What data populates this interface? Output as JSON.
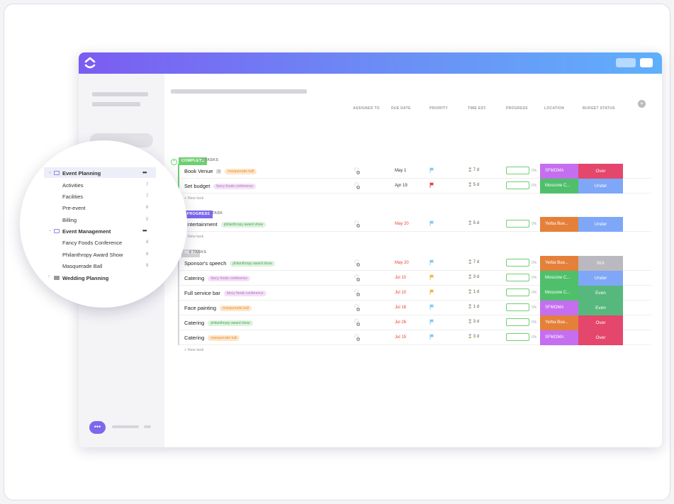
{
  "sidebar_zoom": {
    "items": [
      {
        "label": "Event Planning",
        "type": "folder",
        "more": "•••"
      },
      {
        "label": "Activities",
        "count": "7"
      },
      {
        "label": "Facilities",
        "count": "7"
      },
      {
        "label": "Pre-event",
        "count": "6"
      },
      {
        "label": "Billing",
        "count": "5"
      },
      {
        "label": "Event Management",
        "type": "folder",
        "more": "•••"
      },
      {
        "label": "Fancy Foods Conference",
        "count": "8"
      },
      {
        "label": "Philanthropy Award Show",
        "count": "8"
      },
      {
        "label": "Masquerade Ball",
        "count": "8"
      },
      {
        "label": "Wedding Planning",
        "type": "folder"
      }
    ]
  },
  "columns": {
    "assigned": "ASSIGNED TO",
    "due": "DUE DATE",
    "priority": "PRIORITY",
    "time": "TIME EST.",
    "progress": "PROGRESS",
    "location": "LOCATION",
    "budget": "BUDGET STATUS"
  },
  "groups": [
    {
      "status": "COMPLETE",
      "count": "2 TASKS",
      "color": "#6fcf72",
      "new_task": "+ New task",
      "tasks": [
        {
          "name": "Book Venue",
          "subcount": "3",
          "tag": "masquerade ball",
          "due": "May 1",
          "due_red": false,
          "flag": "#7fc9f0",
          "time": "7 d",
          "pct": "0%",
          "location": "SFMOMA",
          "loc_color": "#c56ef0",
          "budget": "Over",
          "bud_color": "#e5466c"
        },
        {
          "name": "Set budget",
          "tag": "fancy foods conference",
          "due": "Apr 19",
          "due_red": false,
          "flag": "#e0453c",
          "time": "5 d",
          "pct": "0%",
          "location": "Moscone C...",
          "loc_color": "#4fbf6b",
          "budget": "Under",
          "bud_color": "#7fa7f7"
        }
      ]
    },
    {
      "status": "IN PROGRESS",
      "count": "1 TASK",
      "color": "#7b68ee",
      "new_task": "+ New task",
      "tasks": [
        {
          "name": "Entertainment",
          "tag": "philanthropy award show",
          "due": "May 20",
          "due_red": true,
          "flag": "#7fc9f0",
          "time": "5 d",
          "pct": "0%",
          "location": "Yerba Bue...",
          "loc_color": "#e5803a",
          "budget": "Under",
          "bud_color": "#7fa7f7"
        }
      ]
    },
    {
      "status": "TO DO",
      "count": "6 TASKS",
      "color": "#d3d3d8",
      "new_task": "+ New task",
      "tasks": [
        {
          "name": "Sponsor's speech",
          "tag": "philanthropy award show",
          "due": "May 20",
          "due_red": true,
          "flag": "#7fc9f0",
          "time": "7 d",
          "pct": "0%",
          "location": "Yerba Bue...",
          "loc_color": "#e5803a",
          "budget": "N/A",
          "bud_color": "#b9b9bf"
        },
        {
          "name": "Catering",
          "tag": "fancy foods conference",
          "due": "Jul 10",
          "due_red": true,
          "flag": "#f2b43c",
          "time": "3 d",
          "pct": "0%",
          "location": "Moscone C...",
          "loc_color": "#4fbf6b",
          "budget": "Under",
          "bud_color": "#7fa7f7"
        },
        {
          "name": "Full service bar",
          "tag": "fancy foods conference",
          "due": "Jul 10",
          "due_red": true,
          "flag": "#f2b43c",
          "time": "1 d",
          "pct": "0%",
          "location": "Moscone C...",
          "loc_color": "#4fbf6b",
          "budget": "Even",
          "bud_color": "#56b87d"
        },
        {
          "name": "Face painting",
          "tag": "masquerade ball",
          "due": "Jul 18",
          "due_red": true,
          "flag": "#7fc9f0",
          "time": "1 d",
          "pct": "0%",
          "location": "SFMOMA",
          "loc_color": "#c56ef0",
          "budget": "Even",
          "bud_color": "#56b87d"
        },
        {
          "name": "Catering",
          "tag": "philanthropy award show",
          "due": "Jul 26",
          "due_red": true,
          "flag": "#7fc9f0",
          "time": "3 d",
          "pct": "0%",
          "location": "Yerba Bue...",
          "loc_color": "#e5803a",
          "budget": "Over",
          "bud_color": "#e5466c"
        },
        {
          "name": "Catering",
          "tag": "masquerade ball",
          "due": "Jul 15",
          "due_red": true,
          "flag": "#7fc9f0",
          "time": "3 d",
          "pct": "0%",
          "location": "SFMOMA",
          "loc_color": "#c56ef0",
          "budget": "Over",
          "bud_color": "#e5466c"
        }
      ]
    }
  ],
  "tag_colors": {
    "masquerade ball": {
      "bg": "#fde6cc",
      "fg": "#e8922f"
    },
    "fancy foods conference": {
      "bg": "#f3e2f6",
      "fg": "#b66cc4"
    },
    "philanthropy award show": {
      "bg": "#ddf3de",
      "fg": "#4fa45a"
    }
  },
  "icons": {
    "logo": "clickup-logo-icon",
    "chat": "chat-icon",
    "add_column": "plus-circle-icon"
  },
  "chat_label": "•••"
}
